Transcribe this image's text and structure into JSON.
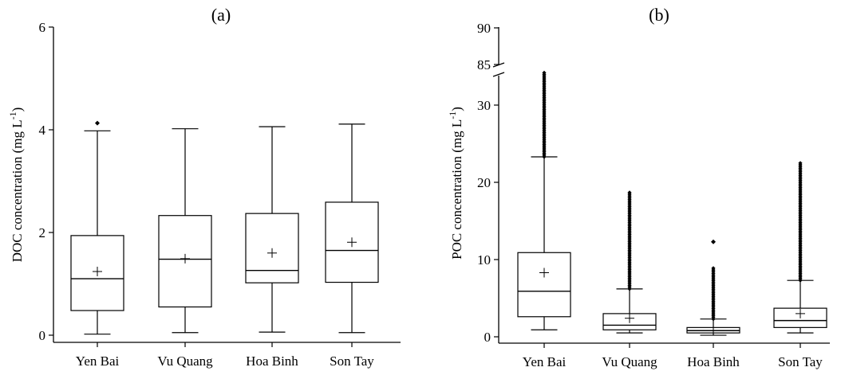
{
  "chart_data": [
    {
      "type": "box",
      "title": "(a)",
      "ylabel": "DOC concentration (mg L",
      "ylabel_sup": "-1",
      "ylabel_close": ")",
      "categories": [
        "Yen Bai",
        "Vu Quang",
        "Hoa Binh",
        "Son Tay"
      ],
      "ylim": [
        0,
        6
      ],
      "yticks": [
        0,
        2,
        4,
        6
      ],
      "grid": false,
      "boxes": [
        {
          "name": "Yen Bai",
          "whisker_low": 0.02,
          "q1": 0.48,
          "median": 1.1,
          "q3": 1.94,
          "whisker_high": 3.98,
          "mean": 1.24,
          "outliers": [
            4.13
          ]
        },
        {
          "name": "Vu Quang",
          "whisker_low": 0.05,
          "q1": 0.55,
          "median": 1.48,
          "q3": 2.33,
          "whisker_high": 4.02,
          "mean": 1.49,
          "outliers": []
        },
        {
          "name": "Hoa Binh",
          "whisker_low": 0.06,
          "q1": 1.02,
          "median": 1.26,
          "q3": 2.37,
          "whisker_high": 4.06,
          "mean": 1.6,
          "outliers": []
        },
        {
          "name": "Son Tay",
          "whisker_low": 0.05,
          "q1": 1.03,
          "median": 1.65,
          "q3": 2.59,
          "whisker_high": 4.11,
          "mean": 1.81,
          "outliers": []
        }
      ]
    },
    {
      "type": "box",
      "title": "(b)",
      "ylabel": "POC concentration (mg L",
      "ylabel_sup": "-1",
      "ylabel_close": ")",
      "categories": [
        "Yen Bai",
        "Vu Quang",
        "Hoa Binh",
        "Son Tay"
      ],
      "ylim": [
        0,
        90
      ],
      "axis_break": [
        34,
        85
      ],
      "yticks": [
        0,
        10,
        20,
        30,
        85,
        90
      ],
      "grid": false,
      "boxes": [
        {
          "name": "Yen Bai",
          "whisker_low": 0.9,
          "q1": 2.6,
          "median": 5.9,
          "q3": 10.9,
          "whisker_high": 23.3,
          "mean": 8.3,
          "outlier_range": [
            23.3,
            84.0
          ]
        },
        {
          "name": "Vu Quang",
          "whisker_low": 0.5,
          "q1": 0.9,
          "median": 1.5,
          "q3": 3.0,
          "whisker_high": 6.2,
          "mean": 2.4,
          "outlier_range": [
            6.2,
            18.7
          ]
        },
        {
          "name": "Hoa Binh",
          "whisker_low": 0.2,
          "q1": 0.5,
          "median": 0.8,
          "q3": 1.2,
          "whisker_high": 2.3,
          "mean": 0.8,
          "outlier_range": [
            2.3,
            8.9
          ],
          "outliers": [
            12.3
          ]
        },
        {
          "name": "Son Tay",
          "whisker_low": 0.5,
          "q1": 1.2,
          "median": 2.1,
          "q3": 3.7,
          "whisker_high": 7.3,
          "mean": 3.0,
          "outlier_range": [
            7.3,
            22.7
          ]
        }
      ]
    }
  ]
}
